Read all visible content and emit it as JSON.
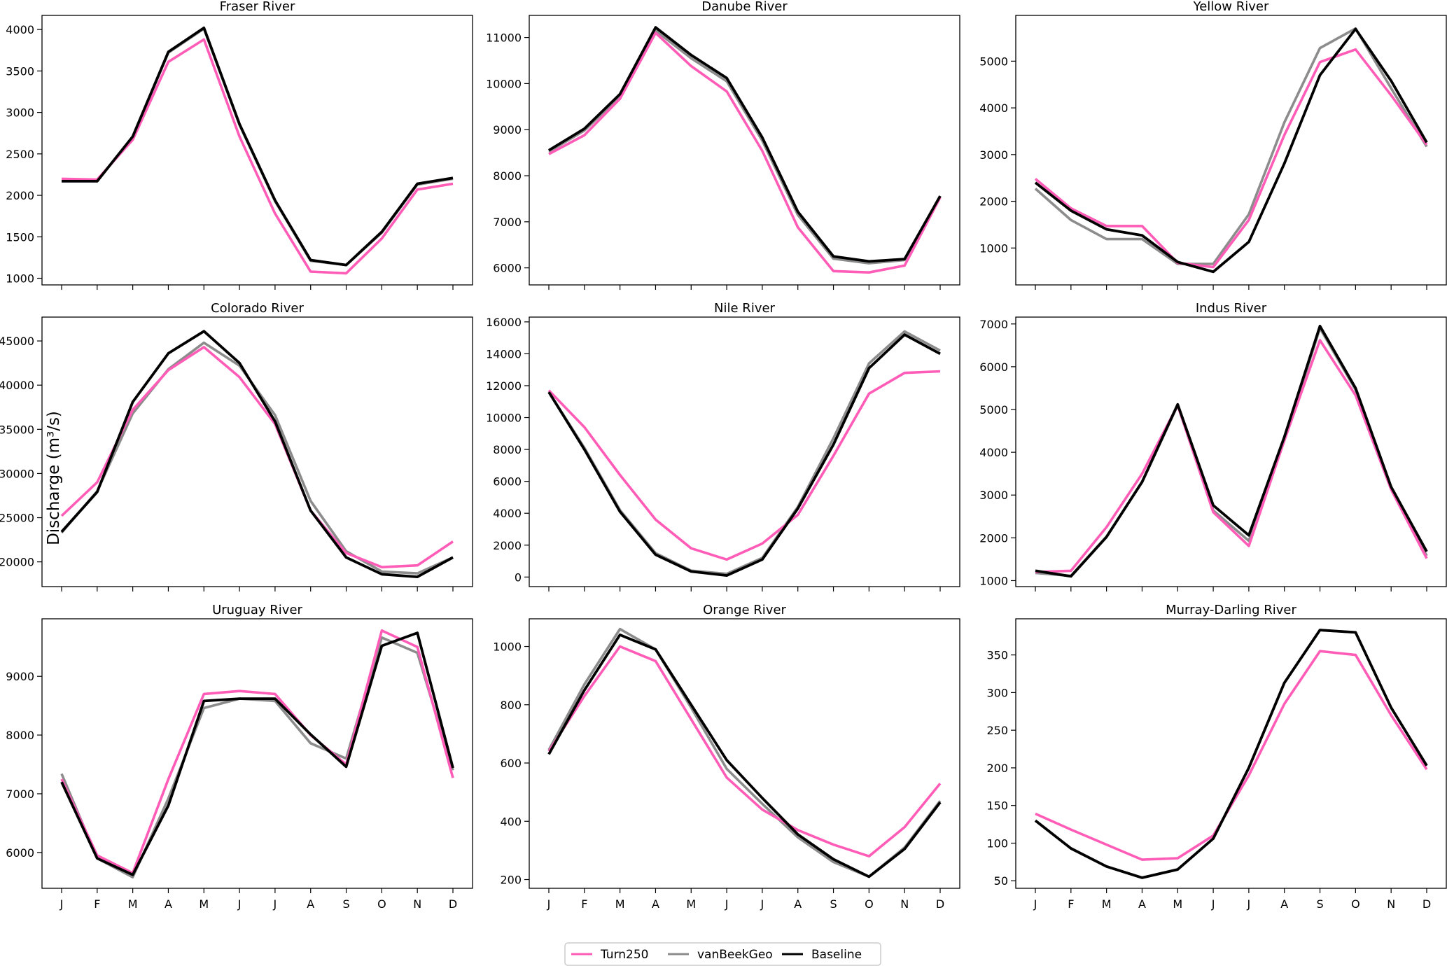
{
  "figure": {
    "ylabel": "Discharge (m³/s)",
    "months": [
      "J",
      "F",
      "M",
      "A",
      "M",
      "J",
      "J",
      "A",
      "S",
      "O",
      "N",
      "D"
    ],
    "colors": {
      "Turn250": "#ff5cb8",
      "vanBeekGeo": "#8c8c8c",
      "Baseline": "#000000"
    }
  },
  "legend": {
    "position": "bottom-center",
    "items": [
      {
        "name": "Turn250",
        "color": "#ff5cb8"
      },
      {
        "name": "vanBeekGeo",
        "color": "#8c8c8c"
      },
      {
        "name": "Baseline",
        "color": "#000000"
      }
    ]
  },
  "chart_data": [
    {
      "type": "line",
      "title": "Fraser River",
      "xlabel": "",
      "ylabel": "",
      "ylim": [
        920,
        4170
      ],
      "yticks": [
        1000,
        1500,
        2000,
        2500,
        3000,
        3500,
        4000
      ],
      "show_xlabels": false,
      "series": [
        {
          "name": "Turn250",
          "values": [
            2200,
            2190,
            2670,
            3610,
            3880,
            2710,
            1780,
            1080,
            1060,
            1480,
            2070,
            2140
          ]
        },
        {
          "name": "vanBeekGeo",
          "values": [
            2180,
            2170,
            2700,
            3720,
            4010,
            2850,
            1930,
            1210,
            1160,
            1550,
            2130,
            2200
          ]
        },
        {
          "name": "Baseline",
          "values": [
            2170,
            2170,
            2710,
            3730,
            4020,
            2860,
            1940,
            1220,
            1160,
            1560,
            2140,
            2210
          ]
        }
      ]
    },
    {
      "type": "line",
      "title": "Danube River",
      "xlabel": "",
      "ylabel": "",
      "ylim": [
        5630,
        11480
      ],
      "yticks": [
        6000,
        7000,
        8000,
        9000,
        10000,
        11000
      ],
      "show_xlabels": false,
      "series": [
        {
          "name": "Turn250",
          "values": [
            8470,
            8880,
            9670,
            11100,
            10380,
            9830,
            8540,
            6880,
            5930,
            5900,
            6050,
            7530
          ]
        },
        {
          "name": "vanBeekGeo",
          "values": [
            8520,
            8980,
            9720,
            11150,
            10550,
            10050,
            8760,
            7150,
            6200,
            6100,
            6170,
            7550
          ]
        },
        {
          "name": "Baseline",
          "values": [
            8550,
            9020,
            9770,
            11220,
            10620,
            10120,
            8830,
            7220,
            6250,
            6140,
            6190,
            7560
          ]
        }
      ]
    },
    {
      "type": "line",
      "title": "Yellow River",
      "xlabel": "",
      "ylabel": "",
      "ylim": [
        210,
        5980
      ],
      "yticks": [
        1000,
        2000,
        3000,
        4000,
        5000
      ],
      "show_xlabels": false,
      "series": [
        {
          "name": "Turn250",
          "values": [
            2480,
            1850,
            1470,
            1470,
            680,
            590,
            1600,
            3420,
            4980,
            5250,
            4270,
            3210
          ]
        },
        {
          "name": "vanBeekGeo",
          "values": [
            2270,
            1600,
            1190,
            1190,
            660,
            660,
            1720,
            3690,
            5280,
            5700,
            4420,
            3170
          ]
        },
        {
          "name": "Baseline",
          "values": [
            2400,
            1800,
            1400,
            1270,
            700,
            490,
            1130,
            2810,
            4700,
            5690,
            4580,
            3260
          ]
        }
      ]
    },
    {
      "type": "line",
      "title": "Colorado River",
      "xlabel": "",
      "ylabel": "",
      "ylim": [
        17200,
        47700
      ],
      "yticks": [
        20000,
        25000,
        30000,
        35000,
        40000,
        45000
      ],
      "show_xlabels": false,
      "series": [
        {
          "name": "Turn250",
          "values": [
            25200,
            29000,
            37200,
            41700,
            44300,
            40900,
            35600,
            25800,
            21000,
            19400,
            19600,
            22300
          ]
        },
        {
          "name": "vanBeekGeo",
          "values": [
            23300,
            28000,
            36800,
            41800,
            44800,
            42200,
            36600,
            26900,
            21200,
            18900,
            18700,
            20500
          ]
        },
        {
          "name": "Baseline",
          "values": [
            23400,
            27900,
            38100,
            43600,
            46100,
            42500,
            35900,
            25800,
            20500,
            18600,
            18300,
            20500
          ]
        }
      ]
    },
    {
      "type": "line",
      "title": "Nile River",
      "xlabel": "",
      "ylabel": "",
      "ylim": [
        -600,
        16300
      ],
      "yticks": [
        0,
        2000,
        4000,
        6000,
        8000,
        10000,
        12000,
        14000,
        16000
      ],
      "show_xlabels": false,
      "series": [
        {
          "name": "Turn250",
          "values": [
            11700,
            9400,
            6400,
            3600,
            1800,
            1100,
            2100,
            3900,
            7600,
            11500,
            12800,
            12900
          ]
        },
        {
          "name": "vanBeekGeo",
          "values": [
            11600,
            8100,
            4200,
            1500,
            400,
            200,
            1200,
            4400,
            8700,
            13400,
            15400,
            14200
          ]
        },
        {
          "name": "Baseline",
          "values": [
            11600,
            8000,
            4100,
            1400,
            350,
            100,
            1100,
            4300,
            8300,
            13100,
            15200,
            14000
          ]
        }
      ]
    },
    {
      "type": "line",
      "title": "Indus River",
      "xlabel": "",
      "ylabel": "",
      "ylim": [
        860,
        7160
      ],
      "yticks": [
        1000,
        2000,
        3000,
        4000,
        5000,
        6000,
        7000
      ],
      "show_xlabels": false,
      "series": [
        {
          "name": "Turn250",
          "values": [
            1200,
            1230,
            2250,
            3500,
            5100,
            2600,
            1810,
            4280,
            6620,
            5330,
            3130,
            1520
          ]
        },
        {
          "name": "vanBeekGeo",
          "values": [
            1180,
            1110,
            2030,
            3300,
            5100,
            2640,
            1930,
            4280,
            6900,
            5460,
            3160,
            1580
          ]
        },
        {
          "name": "Baseline",
          "values": [
            1230,
            1100,
            2020,
            3310,
            5120,
            2760,
            2060,
            4360,
            6950,
            5500,
            3190,
            1680
          ]
        }
      ]
    },
    {
      "type": "line",
      "title": "Uruguay River",
      "xlabel": "",
      "ylabel": "",
      "ylim": [
        5390,
        9980
      ],
      "yticks": [
        6000,
        7000,
        8000,
        9000
      ],
      "show_xlabels": true,
      "series": [
        {
          "name": "Turn250",
          "values": [
            7250,
            5950,
            5650,
            7250,
            8700,
            8750,
            8700,
            8000,
            7500,
            9780,
            9500,
            7270
          ]
        },
        {
          "name": "vanBeekGeo",
          "values": [
            7340,
            5900,
            5580,
            6920,
            8460,
            8620,
            8580,
            7860,
            7600,
            9660,
            9400,
            7400
          ]
        },
        {
          "name": "Baseline",
          "values": [
            7200,
            5900,
            5620,
            6800,
            8580,
            8620,
            8620,
            8010,
            7460,
            9520,
            9740,
            7440
          ]
        }
      ]
    },
    {
      "type": "line",
      "title": "Orange River",
      "xlabel": "",
      "ylabel": "",
      "ylim": [
        170,
        1095
      ],
      "yticks": [
        200,
        400,
        600,
        800,
        1000
      ],
      "show_xlabels": true,
      "series": [
        {
          "name": "Turn250",
          "values": [
            640,
            830,
            1000,
            950,
            750,
            550,
            440,
            370,
            320,
            280,
            380,
            530
          ]
        },
        {
          "name": "vanBeekGeo",
          "values": [
            645,
            870,
            1060,
            990,
            790,
            580,
            460,
            345,
            260,
            210,
            310,
            470
          ]
        },
        {
          "name": "Baseline",
          "values": [
            630,
            850,
            1040,
            990,
            800,
            610,
            480,
            355,
            270,
            210,
            305,
            465
          ]
        }
      ]
    },
    {
      "type": "line",
      "title": "Murray-Darling River",
      "xlabel": "",
      "ylabel": "",
      "ylim": [
        40,
        398
      ],
      "yticks": [
        50,
        100,
        150,
        200,
        250,
        300,
        350
      ],
      "show_xlabels": true,
      "series": [
        {
          "name": "Turn250",
          "values": [
            139,
            118,
            98,
            78,
            80,
            110,
            190,
            285,
            355,
            350,
            270,
            198
          ]
        },
        {
          "name": "vanBeekGeo",
          "values": [
            130,
            93,
            69,
            54,
            65,
            106,
            200,
            313,
            383,
            380,
            280,
            203
          ]
        },
        {
          "name": "Baseline",
          "values": [
            130,
            93,
            69,
            54,
            65,
            106,
            200,
            313,
            383,
            380,
            280,
            203
          ]
        }
      ]
    }
  ]
}
